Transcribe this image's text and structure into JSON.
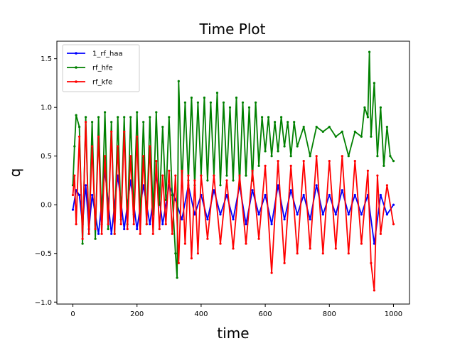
{
  "chart_data": {
    "type": "line",
    "title": "Time Plot",
    "xlabel": "time",
    "ylabel": "q",
    "xlim": [
      -50,
      1050
    ],
    "ylim": [
      -1.02,
      1.68
    ],
    "xticks": [
      0,
      200,
      400,
      600,
      800,
      1000
    ],
    "yticks": [
      -1.0,
      -0.5,
      0.0,
      0.5,
      1.0,
      1.5
    ],
    "ytick_labels": [
      "−1.0",
      "−0.5",
      "0.0",
      "0.5",
      "1.0",
      "1.5"
    ],
    "grid": false,
    "legend_position": "top-left",
    "series": [
      {
        "name": "1_rf_haa",
        "color": "#0000ff",
        "x": [
          0,
          10,
          20,
          30,
          40,
          50,
          60,
          80,
          100,
          120,
          140,
          160,
          180,
          200,
          220,
          240,
          260,
          280,
          300,
          320,
          340,
          360,
          380,
          400,
          420,
          440,
          460,
          480,
          500,
          520,
          540,
          560,
          580,
          600,
          620,
          640,
          660,
          680,
          700,
          720,
          740,
          760,
          780,
          800,
          820,
          840,
          860,
          880,
          900,
          920,
          940,
          960,
          980,
          1000
        ],
        "y": [
          -0.05,
          0.15,
          0.1,
          -0.2,
          0.2,
          -0.25,
          0.1,
          -0.3,
          0.35,
          -0.3,
          0.3,
          -0.25,
          0.25,
          -0.25,
          0.2,
          -0.2,
          0.3,
          -0.2,
          0.2,
          0.05,
          -0.15,
          0.2,
          -0.1,
          0.1,
          -0.15,
          0.15,
          -0.1,
          0.1,
          -0.15,
          0.2,
          -0.2,
          0.15,
          -0.1,
          0.1,
          -0.2,
          0.2,
          -0.15,
          0.15,
          -0.1,
          0.1,
          -0.15,
          0.2,
          -0.1,
          0.1,
          -0.1,
          0.15,
          -0.1,
          0.1,
          -0.1,
          0.1,
          -0.4,
          0.1,
          -0.1,
          0.0
        ]
      },
      {
        "name": "rf_hfe",
        "color": "#008000",
        "x": [
          0,
          5,
          10,
          20,
          30,
          40,
          50,
          60,
          70,
          80,
          90,
          100,
          110,
          120,
          130,
          140,
          150,
          160,
          170,
          180,
          190,
          200,
          210,
          220,
          230,
          240,
          250,
          260,
          270,
          280,
          290,
          300,
          310,
          320,
          325,
          330,
          340,
          350,
          360,
          370,
          380,
          390,
          400,
          410,
          420,
          430,
          440,
          450,
          460,
          470,
          480,
          490,
          500,
          510,
          520,
          530,
          540,
          550,
          560,
          570,
          580,
          590,
          600,
          610,
          620,
          630,
          640,
          650,
          660,
          670,
          680,
          690,
          700,
          720,
          740,
          760,
          780,
          800,
          820,
          840,
          860,
          880,
          900,
          910,
          920,
          925,
          930,
          940,
          950,
          960,
          970,
          980,
          990,
          1000
        ],
        "y": [
          0.2,
          0.6,
          0.92,
          0.8,
          -0.4,
          0.9,
          -0.3,
          0.85,
          -0.35,
          0.9,
          -0.2,
          0.95,
          -0.25,
          0.85,
          -0.3,
          0.9,
          -0.15,
          0.9,
          -0.2,
          0.9,
          -0.1,
          0.95,
          -0.15,
          0.85,
          -0.2,
          0.9,
          -0.1,
          0.95,
          0.0,
          0.8,
          0.05,
          0.9,
          0.1,
          -0.5,
          -0.75,
          1.27,
          0.2,
          1.05,
          0.25,
          1.1,
          0.2,
          1.05,
          0.3,
          1.1,
          0.25,
          1.05,
          0.3,
          1.15,
          0.2,
          1.05,
          0.3,
          1.0,
          0.25,
          1.1,
          0.2,
          1.05,
          0.3,
          1.0,
          0.25,
          1.05,
          0.4,
          0.9,
          0.55,
          0.9,
          0.5,
          0.85,
          0.55,
          0.9,
          0.6,
          0.85,
          0.5,
          0.85,
          0.6,
          0.8,
          0.5,
          0.8,
          0.75,
          0.8,
          0.7,
          0.75,
          0.5,
          0.75,
          0.7,
          1.0,
          0.9,
          1.57,
          0.7,
          1.25,
          0.5,
          1.0,
          0.4,
          0.8,
          0.5,
          0.45
        ]
      },
      {
        "name": "rf_kfe",
        "color": "#ff0000",
        "x": [
          0,
          5,
          10,
          20,
          30,
          40,
          50,
          60,
          70,
          80,
          90,
          100,
          110,
          120,
          130,
          140,
          150,
          160,
          170,
          180,
          190,
          200,
          210,
          220,
          230,
          240,
          250,
          260,
          270,
          280,
          290,
          300,
          310,
          320,
          330,
          340,
          350,
          360,
          370,
          380,
          390,
          400,
          420,
          440,
          460,
          480,
          500,
          520,
          540,
          560,
          580,
          600,
          620,
          640,
          660,
          680,
          700,
          720,
          740,
          760,
          780,
          800,
          820,
          840,
          860,
          880,
          900,
          920,
          930,
          940,
          950,
          960,
          980,
          1000
        ],
        "y": [
          0.1,
          0.3,
          -0.2,
          0.7,
          -0.35,
          0.85,
          -0.3,
          0.6,
          -0.25,
          0.7,
          -0.3,
          0.5,
          -0.2,
          0.75,
          -0.3,
          0.6,
          -0.2,
          0.75,
          -0.25,
          0.5,
          -0.2,
          0.7,
          -0.3,
          0.5,
          -0.2,
          0.6,
          -0.3,
          0.45,
          -0.25,
          0.3,
          -0.2,
          0.35,
          -0.3,
          0.3,
          -0.6,
          0.35,
          -0.4,
          0.3,
          -0.55,
          0.25,
          -0.5,
          0.3,
          -0.35,
          0.3,
          -0.4,
          0.25,
          -0.45,
          0.3,
          -0.4,
          0.35,
          -0.35,
          0.4,
          -0.7,
          0.45,
          -0.6,
          0.4,
          -0.5,
          0.45,
          -0.45,
          0.5,
          -0.5,
          0.45,
          -0.45,
          0.5,
          -0.5,
          0.45,
          -0.4,
          0.35,
          -0.6,
          -0.88,
          0.3,
          -0.3,
          0.2,
          -0.2
        ]
      }
    ]
  }
}
